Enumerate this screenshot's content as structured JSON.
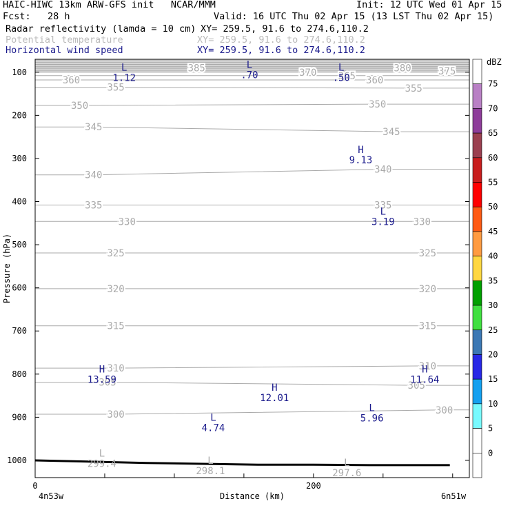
{
  "header": {
    "title_left": "HAIC-HIWC 13km ARW-GFS init   NCAR/MMM",
    "init": "Init: 12 UTC Wed 01 Apr 15",
    "fcst": "Fcst:   28 h",
    "valid": "Valid: 16 UTC Thu 02 Apr 15 (13 LST Thu 02 Apr 15)",
    "fields": [
      {
        "name": "Radar reflectivity (lamda = 10 cm)",
        "xy": "XY= 259.5, 91.6 to 274.6,110.2",
        "color": "#000000"
      },
      {
        "name": "Potential temperature",
        "xy": "XY= 259.5, 91.6 to 274.6,110.2",
        "color": "#bbbbbb"
      },
      {
        "name": "Horizontal wind speed",
        "xy": "XY= 259.5, 91.6 to 274.6,110.2",
        "color": "#1a1a8c"
      }
    ]
  },
  "chart_data": {
    "type": "cross-section",
    "ylabel": "Pressure (hPa)",
    "xlabel": "Distance (km)",
    "y_ticks": [
      100,
      200,
      300,
      400,
      500,
      600,
      700,
      800,
      900,
      1000
    ],
    "x_tick_labels": [
      "0",
      "200"
    ],
    "x_endpoints": [
      "4n53w",
      "6n51w"
    ],
    "colorbar": {
      "unit": "dBZ",
      "levels": [
        "75",
        "70",
        "65",
        "60",
        "55",
        "50",
        "45",
        "40",
        "35",
        "30",
        "25",
        "20",
        "15",
        "10",
        "5",
        "0"
      ],
      "colors": [
        "#ffffff",
        "#b980c5",
        "#8e3d9a",
        "#9b4050",
        "#c81e1e",
        "#ff0000",
        "#ff5a14",
        "#ff9b41",
        "#ffd741",
        "#00a000",
        "#40e040",
        "#3c78b4",
        "#2828e6",
        "#14a0f0",
        "#78faff",
        "#ffffff",
        "#ffffff"
      ]
    },
    "theta_labels": [
      {
        "t": "385",
        "x": 58,
        "p": 90
      },
      {
        "t": "380",
        "x": 132,
        "p": 90
      },
      {
        "t": "375",
        "x": 148,
        "p": 97
      },
      {
        "t": "370",
        "x": 98,
        "p": 100
      },
      {
        "t": "365",
        "x": 112,
        "p": 108
      },
      {
        "t": "360",
        "x": 13,
        "p": 118
      },
      {
        "t": "360",
        "x": 122,
        "p": 118
      },
      {
        "t": "355",
        "x": 29,
        "p": 135
      },
      {
        "t": "355",
        "x": 136,
        "p": 137
      },
      {
        "t": "350",
        "x": 16,
        "p": 177
      },
      {
        "t": "350",
        "x": 123,
        "p": 174
      },
      {
        "t": "345",
        "x": 21,
        "p": 227
      },
      {
        "t": "345",
        "x": 128,
        "p": 238
      },
      {
        "t": "340",
        "x": 21,
        "p": 338
      },
      {
        "t": "340",
        "x": 125,
        "p": 325
      },
      {
        "t": "335",
        "x": 21,
        "p": 408
      },
      {
        "t": "335",
        "x": 125,
        "p": 408
      },
      {
        "t": "330",
        "x": 33,
        "p": 446
      },
      {
        "t": "330",
        "x": 139,
        "p": 446
      },
      {
        "t": "325",
        "x": 29,
        "p": 519
      },
      {
        "t": "325",
        "x": 141,
        "p": 519
      },
      {
        "t": "320",
        "x": 29,
        "p": 602
      },
      {
        "t": "320",
        "x": 141,
        "p": 602
      },
      {
        "t": "315",
        "x": 29,
        "p": 688
      },
      {
        "t": "315",
        "x": 141,
        "p": 688
      },
      {
        "t": "310",
        "x": 29,
        "p": 786
      },
      {
        "t": "310",
        "x": 141,
        "p": 781
      },
      {
        "t": "305",
        "x": 26,
        "p": 819
      },
      {
        "t": "305",
        "x": 137,
        "p": 826
      },
      {
        "t": "300",
        "x": 29,
        "p": 893
      },
      {
        "t": "300",
        "x": 147,
        "p": 883
      }
    ],
    "extrema": [
      {
        "type": "L",
        "value": "1.12",
        "x": 32,
        "p": 96,
        "series": "wind"
      },
      {
        "type": "L",
        "value": ".70",
        "x": 77,
        "p": 90,
        "series": "wind"
      },
      {
        "type": "L",
        "value": ".50",
        "x": 110,
        "p": 96,
        "series": "wind"
      },
      {
        "type": "H",
        "value": "9.13",
        "x": 117,
        "p": 287,
        "series": "wind"
      },
      {
        "type": "L",
        "value": "3.19",
        "x": 125,
        "p": 430,
        "series": "wind"
      },
      {
        "type": "H",
        "value": "13.59",
        "x": 24,
        "p": 796,
        "series": "wind"
      },
      {
        "type": "H",
        "value": "12.01",
        "x": 86,
        "p": 839,
        "series": "wind"
      },
      {
        "type": "H",
        "value": "11.64",
        "x": 140,
        "p": 796,
        "series": "wind"
      },
      {
        "type": "L",
        "value": "4.74",
        "x": 64,
        "p": 908,
        "series": "wind"
      },
      {
        "type": "L",
        "value": "5.96",
        "x": 121,
        "p": 886,
        "series": "wind"
      },
      {
        "type": "L",
        "value": "299.4",
        "x": 24,
        "p": 991,
        "series": "theta"
      },
      {
        "type": "L",
        "value": "298.1",
        "x": 63,
        "p": 1008,
        "series": "theta"
      },
      {
        "type": "L",
        "value": "297.6",
        "x": 112,
        "p": 1013,
        "series": "theta"
      }
    ],
    "terrain": [
      [
        0,
        1000
      ],
      [
        40,
        1006
      ],
      [
        60,
        1008
      ],
      [
        80,
        1010
      ],
      [
        100,
        1010
      ],
      [
        120,
        1011
      ],
      [
        140,
        1011
      ],
      [
        149,
        1011
      ]
    ],
    "colors": {
      "theta": "#aaaaaa",
      "wind": "#1a1a8c",
      "terrain": "#000000"
    }
  }
}
